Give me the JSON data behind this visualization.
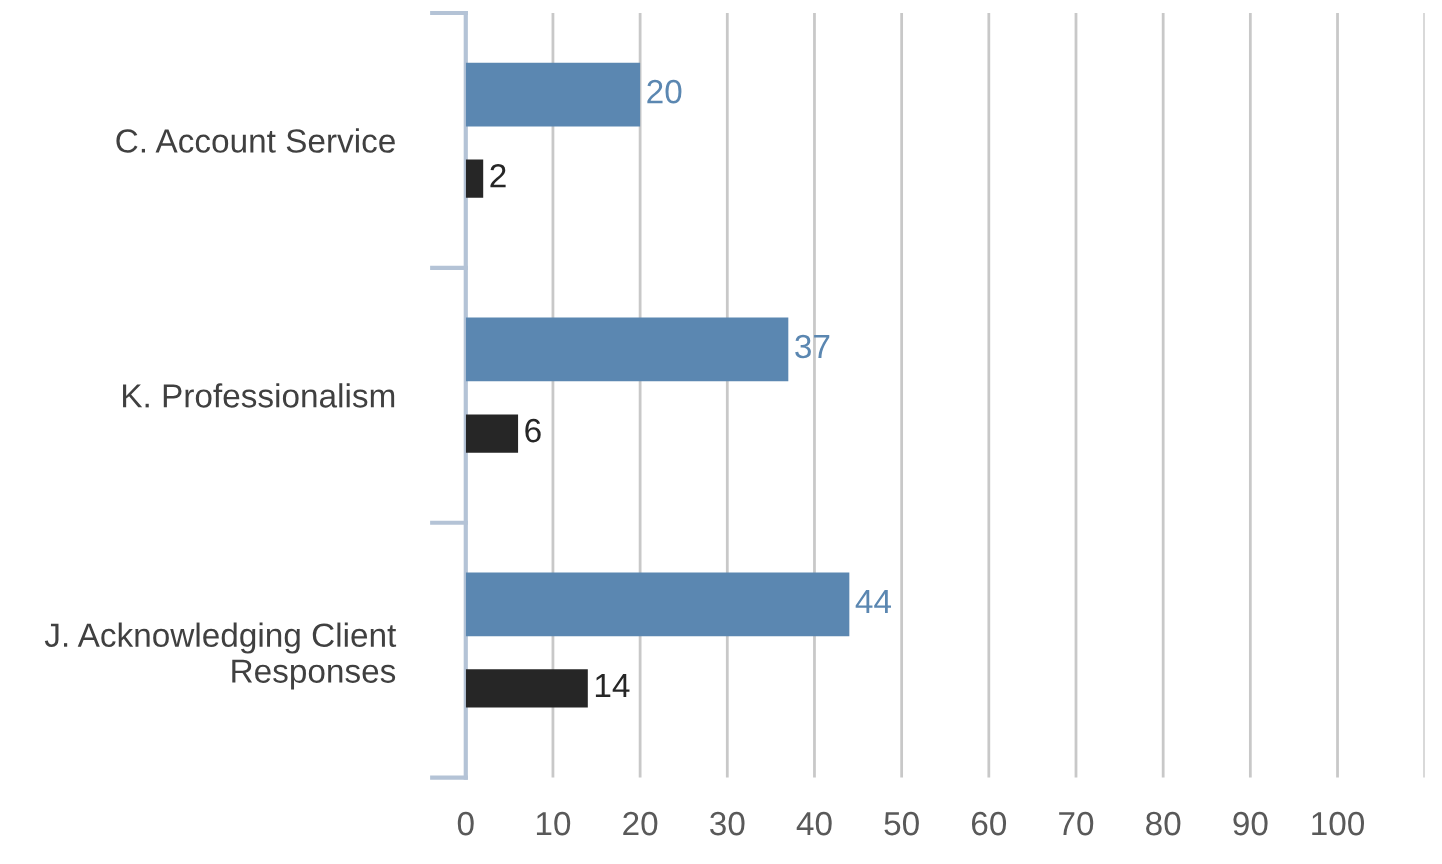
{
  "chart_data": {
    "type": "bar",
    "orientation": "horizontal",
    "categories": [
      "C. Account Service",
      "K. Professionalism",
      "J. Acknowledging Client\nResponses"
    ],
    "series": [
      {
        "color": "#5b87b1",
        "values": [
          20,
          37,
          44
        ]
      },
      {
        "color": "#262626",
        "values": [
          2,
          6,
          14
        ]
      }
    ],
    "xlim": [
      0,
      110
    ],
    "xticks": [
      0,
      10,
      20,
      30,
      40,
      50,
      60,
      70,
      80,
      90,
      100,
      {
        "value": 110,
        "label": null
      }
    ],
    "grid": "x",
    "data_labels": true
  }
}
